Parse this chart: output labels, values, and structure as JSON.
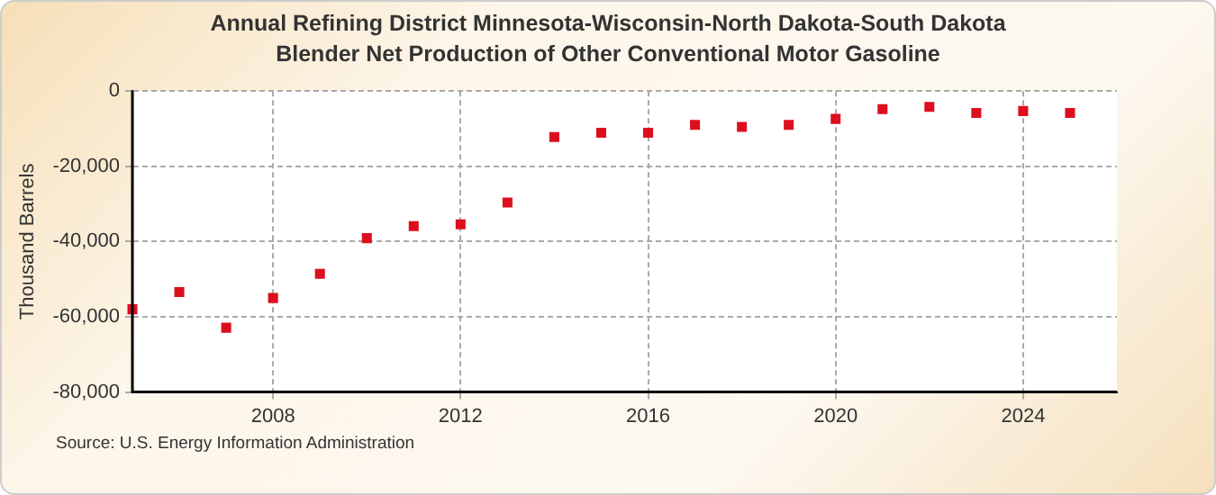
{
  "chart_data": {
    "type": "scatter",
    "title": "Annual Refining District Minnesota-Wisconsin-North Dakota-South Dakota Blender Net Production of Other Conventional Motor Gasoline",
    "ylabel": "Thousand Barrels",
    "x": [
      2005,
      2006,
      2007,
      2008,
      2009,
      2010,
      2011,
      2012,
      2013,
      2014,
      2015,
      2016,
      2017,
      2018,
      2019,
      2020,
      2021,
      2022,
      2023,
      2024,
      2025
    ],
    "series": [
      {
        "color": "#dd0f1f",
        "values": [
          -58000,
          -53400,
          -62900,
          -55000,
          -48600,
          -39100,
          -35900,
          -35400,
          -29600,
          -12200,
          -11100,
          -11100,
          -9000,
          -9500,
          -9000,
          -7400,
          -4800,
          -4200,
          -5800,
          -5300,
          -5800
        ]
      }
    ],
    "xlim": [
      2005,
      2026
    ],
    "xticks": [
      2008,
      2012,
      2016,
      2020,
      2024
    ],
    "ylim": [
      -80000,
      0
    ],
    "yticks": [
      {
        "value": -80000,
        "label": "-80,000"
      },
      {
        "value": -60000,
        "label": "-60,000"
      },
      {
        "value": -40000,
        "label": "-40,000"
      },
      {
        "value": -20000,
        "label": "-20,000"
      },
      0
    ],
    "grid": true,
    "marker": "square",
    "legend": false,
    "annotations": [
      "Source: U.S. Energy Information Administration"
    ]
  }
}
